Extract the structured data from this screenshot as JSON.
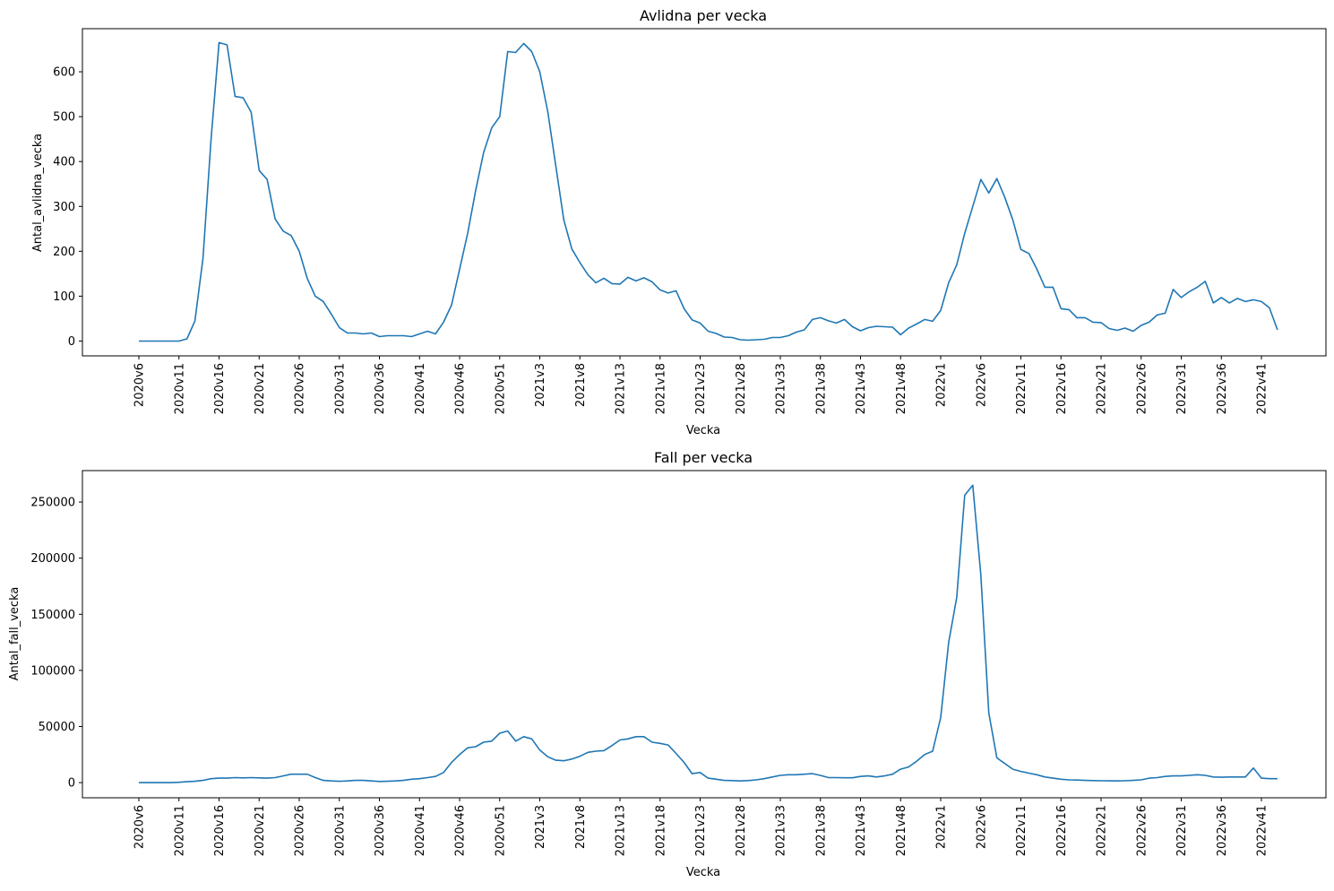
{
  "chart_data": [
    {
      "type": "line",
      "title": "Avlidna per vecka",
      "xlabel": "Vecka",
      "ylabel": "Antal_avlidna_vecka",
      "ylim": [
        -33,
        696
      ],
      "yticks": [
        0,
        100,
        200,
        300,
        400,
        500,
        600
      ],
      "color": "#1f77b4",
      "x_tick_labels": [
        "2020v6",
        "2020v11",
        "2020v16",
        "2020v21",
        "2020v26",
        "2020v31",
        "2020v36",
        "2020v41",
        "2020v46",
        "2020v51",
        "2021v3",
        "2021v8",
        "2021v13",
        "2021v18",
        "2021v23",
        "2021v28",
        "2021v33",
        "2021v38",
        "2021v43",
        "2021v48",
        "2022v1",
        "2022v6",
        "2022v11",
        "2022v16",
        "2022v21",
        "2022v26",
        "2022v31",
        "2022v36",
        "2022v41"
      ],
      "x_start": "2020v6",
      "values": [
        0,
        0,
        0,
        0,
        0,
        0,
        5,
        45,
        185,
        450,
        665,
        660,
        545,
        542,
        510,
        380,
        360,
        272,
        245,
        235,
        200,
        140,
        100,
        88,
        60,
        30,
        18,
        18,
        16,
        18,
        10,
        12,
        12,
        12,
        10,
        16,
        22,
        16,
        42,
        80,
        160,
        240,
        335,
        420,
        475,
        500,
        645,
        643,
        663,
        645,
        600,
        510,
        390,
        270,
        205,
        175,
        148,
        130,
        140,
        128,
        127,
        142,
        134,
        141,
        132,
        114,
        107,
        112,
        72,
        47,
        40,
        22,
        17,
        9,
        8,
        3,
        2,
        3,
        4,
        8,
        8,
        12,
        20,
        25,
        48,
        52,
        45,
        40,
        48,
        32,
        23,
        30,
        33,
        32,
        31,
        14,
        29,
        38,
        48,
        44,
        68,
        130,
        170,
        240,
        300,
        360,
        330,
        362,
        320,
        270,
        204,
        195,
        160,
        120,
        120,
        72,
        70,
        52,
        52,
        42,
        41,
        28,
        24,
        29,
        22,
        35,
        42,
        58,
        62,
        115,
        97,
        110,
        120,
        133,
        85,
        97,
        85,
        95,
        88,
        92,
        88,
        74,
        25
      ]
    },
    {
      "type": "line",
      "title": "Fall per vecka",
      "xlabel": "Vecka",
      "ylabel": "Antal_fall_vecka",
      "ylim": [
        -13500,
        278000
      ],
      "yticks": [
        0,
        50000,
        100000,
        150000,
        200000,
        250000
      ],
      "color": "#1f77b4",
      "x_tick_labels": [
        "2020v6",
        "2020v11",
        "2020v16",
        "2020v21",
        "2020v26",
        "2020v31",
        "2020v36",
        "2020v41",
        "2020v46",
        "2020v51",
        "2021v3",
        "2021v8",
        "2021v13",
        "2021v18",
        "2021v23",
        "2021v28",
        "2021v33",
        "2021v38",
        "2021v43",
        "2021v48",
        "2022v1",
        "2022v6",
        "2022v11",
        "2022v16",
        "2022v21",
        "2022v26",
        "2022v31",
        "2022v36",
        "2022v41"
      ],
      "x_start": "2020v6",
      "values": [
        0,
        0,
        0,
        0,
        0,
        300,
        800,
        1200,
        2000,
        3500,
        4000,
        4000,
        4500,
        4200,
        4500,
        4200,
        4000,
        4500,
        6000,
        7500,
        7500,
        7500,
        4500,
        2000,
        1500,
        1200,
        1500,
        2000,
        2000,
        1500,
        1000,
        1200,
        1500,
        2000,
        3000,
        3500,
        4500,
        5500,
        9000,
        18000,
        25000,
        31000,
        32000,
        36000,
        37000,
        44000,
        46000,
        37000,
        41000,
        39000,
        29000,
        23000,
        20000,
        19500,
        21000,
        23500,
        27000,
        28000,
        28500,
        33000,
        38000,
        39000,
        41000,
        41000,
        36000,
        35000,
        33500,
        26000,
        18000,
        8000,
        9000,
        4000,
        3000,
        2000,
        1800,
        1500,
        1800,
        2500,
        3500,
        5000,
        6500,
        7000,
        7000,
        7500,
        8000,
        6500,
        4500,
        4500,
        4300,
        4300,
        5500,
        6000,
        5000,
        6000,
        7500,
        12000,
        14000,
        19000,
        25000,
        28000,
        58000,
        125000,
        165000,
        256000,
        265000,
        185000,
        62000,
        22000,
        17000,
        12000,
        10000,
        8500,
        7000,
        5000,
        4000,
        3000,
        2500,
        2300,
        2000,
        1800,
        1700,
        1600,
        1500,
        1700,
        2000,
        2500,
        4000,
        4500,
        5500,
        6000,
        6000,
        6500,
        7000,
        6500,
        5000,
        4800,
        5000,
        5000,
        5000,
        13000,
        4000,
        3500,
        3500
      ]
    }
  ]
}
